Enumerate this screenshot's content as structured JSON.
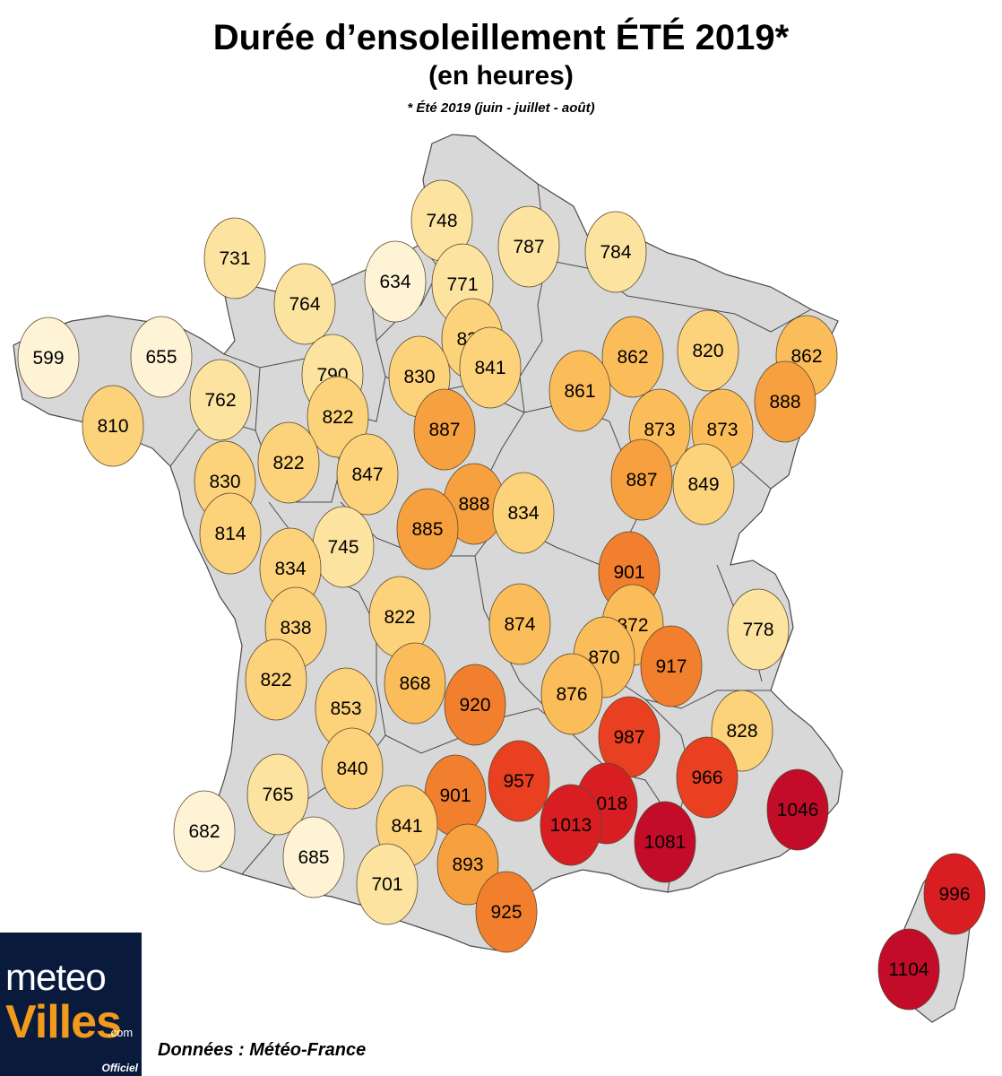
{
  "title": "Durée d’ensoleillement ÉTÉ 2019*",
  "subtitle": "(en heures)",
  "note": "* Été 2019 (juin - juillet - août)",
  "source": "Données : Météo-France",
  "logo": {
    "line1": "meteo",
    "line2": "Villes",
    "suffix": ".com",
    "badge": "Officiel"
  },
  "colors": {
    "land": "#d8d8d8",
    "border": "#4a4a4a",
    "scale": [
      {
        "max": 700,
        "color": "#fff3d6"
      },
      {
        "max": 800,
        "color": "#fde3a0"
      },
      {
        "max": 860,
        "color": "#fcd27a"
      },
      {
        "max": 880,
        "color": "#fbbd5a"
      },
      {
        "max": 900,
        "color": "#f7a03f"
      },
      {
        "max": 930,
        "color": "#f27f2e"
      },
      {
        "max": 990,
        "color": "#e84020"
      },
      {
        "max": 1030,
        "color": "#d81e22"
      },
      {
        "max": 2000,
        "color": "#c30c2a"
      }
    ]
  },
  "values": [
    748,
    787,
    784,
    731,
    634,
    771,
    764,
    834,
    841,
    599,
    655,
    790,
    830,
    862,
    820,
    862,
    762,
    822,
    861,
    888,
    887,
    810,
    873,
    873,
    822,
    847,
    830,
    887,
    849,
    888,
    834,
    885,
    814,
    745,
    834,
    901,
    822,
    874,
    872,
    778,
    838,
    870,
    917,
    868,
    920,
    876,
    822,
    853,
    987,
    828,
    840,
    957,
    966,
    765,
    901,
    1018,
    1046,
    682,
    1013,
    841,
    1081,
    685,
    893,
    701,
    996,
    925,
    1104
  ]
}
